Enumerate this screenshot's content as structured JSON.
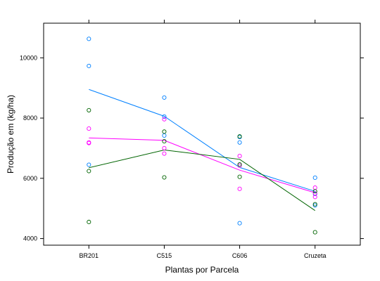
{
  "chart_data": {
    "type": "scatter",
    "title": "",
    "xlabel": "Plantas por Parcela",
    "ylabel": "Produção em (kg/ha)",
    "categories": [
      "BR201",
      "C515",
      "C606",
      "Cruzeta"
    ],
    "xlim": [
      0.4,
      4.6
    ],
    "ylim": [
      3780,
      11150
    ],
    "yticks": [
      4000,
      6000,
      8000,
      10000
    ],
    "ytick_labels": [
      "4000",
      "6000",
      "8000",
      "10000"
    ],
    "grid": false,
    "legend": "none",
    "series": [
      {
        "color": "#0080ff",
        "points": [
          {
            "x": "BR201",
            "y": 10630
          },
          {
            "x": "BR201",
            "y": 9730
          },
          {
            "x": "BR201",
            "y": 6450
          },
          {
            "x": "C515",
            "y": 8680
          },
          {
            "x": "C515",
            "y": 8050
          },
          {
            "x": "C515",
            "y": 7420
          },
          {
            "x": "C606",
            "y": 7370
          },
          {
            "x": "C606",
            "y": 7190
          },
          {
            "x": "C606",
            "y": 4510
          },
          {
            "x": "Cruzeta",
            "y": 6020
          },
          {
            "x": "Cruzeta",
            "y": 5480
          },
          {
            "x": "Cruzeta",
            "y": 5100
          }
        ],
        "line": [
          8950,
          8060,
          6360,
          5570
        ]
      },
      {
        "color": "#ff00ff",
        "points": [
          {
            "x": "BR201",
            "y": 7650
          },
          {
            "x": "BR201",
            "y": 7190
          },
          {
            "x": "BR201",
            "y": 7170
          },
          {
            "x": "C515",
            "y": 7960
          },
          {
            "x": "C515",
            "y": 7000
          },
          {
            "x": "C515",
            "y": 6820
          },
          {
            "x": "C606",
            "y": 6740
          },
          {
            "x": "C606",
            "y": 6420
          },
          {
            "x": "C606",
            "y": 5650
          },
          {
            "x": "Cruzeta",
            "y": 5690
          },
          {
            "x": "Cruzeta",
            "y": 5500
          },
          {
            "x": "Cruzeta",
            "y": 5380
          }
        ],
        "line": [
          7340,
          7260,
          6270,
          5520
        ]
      },
      {
        "color": "#006400",
        "points": [
          {
            "x": "BR201",
            "y": 8260
          },
          {
            "x": "BR201",
            "y": 6240
          },
          {
            "x": "BR201",
            "y": 4550
          },
          {
            "x": "C515",
            "y": 7550
          },
          {
            "x": "C515",
            "y": 7230
          },
          {
            "x": "C515",
            "y": 6030
          },
          {
            "x": "C606",
            "y": 7390
          },
          {
            "x": "C606",
            "y": 6460
          },
          {
            "x": "C606",
            "y": 6050
          },
          {
            "x": "Cruzeta",
            "y": 5570
          },
          {
            "x": "Cruzeta",
            "y": 5140
          },
          {
            "x": "Cruzeta",
            "y": 4210
          }
        ],
        "line": [
          6350,
          6940,
          6630,
          4930
        ]
      }
    ]
  }
}
